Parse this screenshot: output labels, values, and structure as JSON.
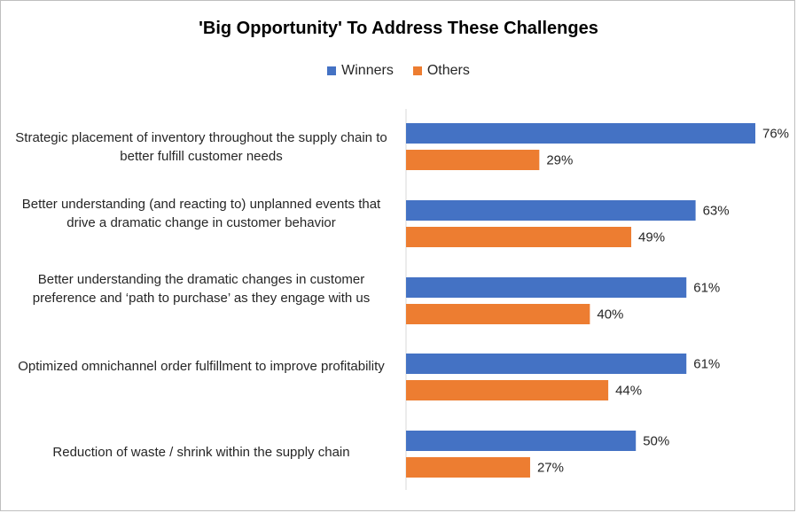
{
  "chart_data": {
    "type": "bar",
    "orientation": "horizontal",
    "title": "'Big Opportunity' To Address These Challenges",
    "categories": [
      "Strategic placement of inventory throughout the supply chain to better fulfill customer needs",
      "Better understanding (and reacting to) unplanned events that drive a dramatic change in customer behavior",
      "Better understanding the dramatic changes in customer preference and ‘path to purchase’ as they engage with us",
      "Optimized omnichannel order fulfillment to improve profitability",
      "Reduction of waste / shrink within the supply chain"
    ],
    "series": [
      {
        "name": "Winners",
        "color": "#4472C4",
        "values": [
          76,
          63,
          61,
          61,
          50
        ],
        "labels": [
          "76%",
          "63%",
          "61%",
          "61%",
          "50%"
        ]
      },
      {
        "name": "Others",
        "color": "#ED7D31",
        "values": [
          29,
          49,
          40,
          44,
          27
        ],
        "labels": [
          "29%",
          "49%",
          "40%",
          "44%",
          "27%"
        ]
      }
    ],
    "xlim": [
      0,
      100
    ],
    "grid": false,
    "legend_position": "top"
  }
}
